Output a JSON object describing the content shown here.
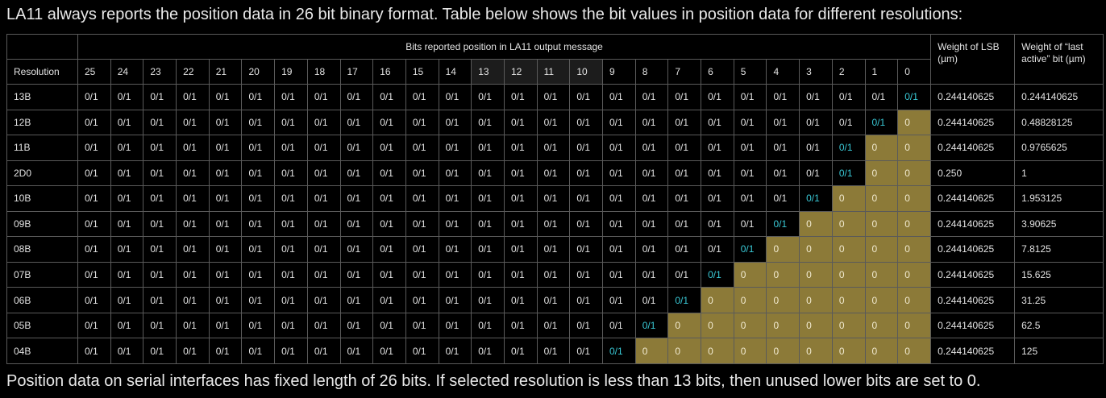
{
  "intro_text": "LA11 always reports the position data in 26 bit binary format. Table below shows the bit values in position data for different resolutions:",
  "outro_text": "Position data on serial interfaces has fixed length of 26 bits. If selected resolution is less than 13 bits, then unused lower bits are set to 0.",
  "table": {
    "title": "Bits reported position in LA11 output message",
    "resolution_header": "Resolution",
    "bit_headers": [
      "25",
      "24",
      "23",
      "22",
      "21",
      "20",
      "19",
      "18",
      "17",
      "16",
      "15",
      "14",
      "13",
      "12",
      "11",
      "10",
      "9",
      "8",
      "7",
      "6",
      "5",
      "4",
      "3",
      "2",
      "1",
      "0"
    ],
    "lsb_header": "Weight of LSB (µm)",
    "last_active_header": "Weight of “last active” bit (µm)",
    "cell_value_any": "0/1",
    "cell_value_zero": "0",
    "colors": {
      "background": "#000000",
      "border": "#5a5a5a",
      "active_bit": "#39c9d6",
      "zero_fill": "#8c7a38",
      "header_dark": "#1c1c1c"
    },
    "rows": [
      {
        "resolution": "13B",
        "active_bit": 0,
        "lsb": "0.244140625",
        "last_active": "0.244140625"
      },
      {
        "resolution": "12B",
        "active_bit": 1,
        "lsb": "0.244140625",
        "last_active": "0.48828125"
      },
      {
        "resolution": "11B",
        "active_bit": 2,
        "lsb": "0.244140625",
        "last_active": "0.9765625"
      },
      {
        "resolution": "2D0",
        "active_bit": 2,
        "lsb": "0.250",
        "last_active": "1"
      },
      {
        "resolution": "10B",
        "active_bit": 3,
        "lsb": "0.244140625",
        "last_active": "1.953125"
      },
      {
        "resolution": "09B",
        "active_bit": 4,
        "lsb": "0.244140625",
        "last_active": "3.90625"
      },
      {
        "resolution": "08B",
        "active_bit": 5,
        "lsb": "0.244140625",
        "last_active": "7.8125"
      },
      {
        "resolution": "07B",
        "active_bit": 6,
        "lsb": "0.244140625",
        "last_active": "15.625"
      },
      {
        "resolution": "06B",
        "active_bit": 7,
        "lsb": "0.244140625",
        "last_active": "31.25"
      },
      {
        "resolution": "05B",
        "active_bit": 8,
        "lsb": "0.244140625",
        "last_active": "62.5"
      },
      {
        "resolution": "04B",
        "active_bit": 9,
        "lsb": "0.244140625",
        "last_active": "125"
      }
    ]
  }
}
